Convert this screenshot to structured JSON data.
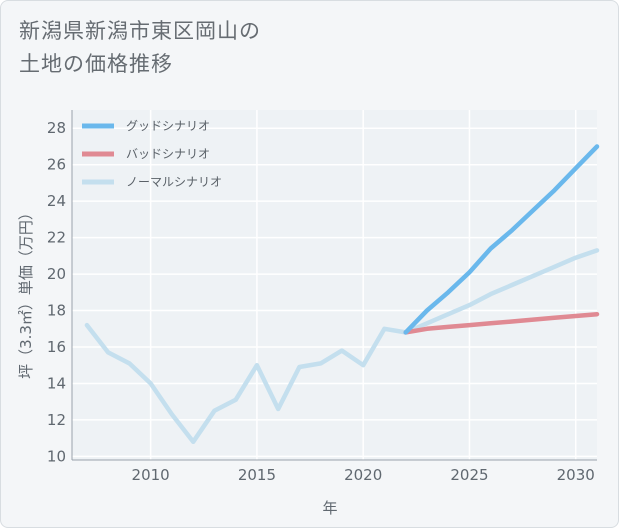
{
  "title": {
    "line1": "新潟県新潟市東区岡山の",
    "line2": "土地の価格推移"
  },
  "colors": {
    "good": "#6ab8ec",
    "bad": "#e08a93",
    "normal": "#c4dfee",
    "grid": "#ffffff",
    "axis": "#9aa3ab"
  },
  "chart_data": {
    "type": "line",
    "xlabel": "年",
    "ylabel": "坪（3.3㎡）単価（万円）",
    "xlim": [
      2006.3,
      2031
    ],
    "ylim": [
      9.8,
      29
    ],
    "xticks": [
      2010,
      2015,
      2020,
      2025,
      2030
    ],
    "yticks": [
      10,
      12,
      14,
      16,
      18,
      20,
      22,
      24,
      26,
      28
    ],
    "grid": true,
    "legend_position": "top-left",
    "series": [
      {
        "name": "グッドシナリオ",
        "key": "good",
        "x": [
          2022,
          2023,
          2024,
          2025,
          2026,
          2027,
          2028,
          2029,
          2030,
          2031
        ],
        "y": [
          16.8,
          18.0,
          19.0,
          20.1,
          21.4,
          22.4,
          23.5,
          24.6,
          25.8,
          27.0
        ]
      },
      {
        "name": "バッドシナリオ",
        "key": "bad",
        "x": [
          2022,
          2023,
          2024,
          2025,
          2026,
          2027,
          2028,
          2029,
          2030,
          2031
        ],
        "y": [
          16.8,
          17.0,
          17.1,
          17.2,
          17.3,
          17.4,
          17.5,
          17.6,
          17.7,
          17.8
        ]
      },
      {
        "name": "ノーマルシナリオ",
        "key": "normal",
        "x": [
          2007,
          2008,
          2009,
          2010,
          2011,
          2012,
          2013,
          2014,
          2015,
          2016,
          2017,
          2018,
          2019,
          2020,
          2021,
          2022,
          2023,
          2024,
          2025,
          2026,
          2027,
          2028,
          2029,
          2030,
          2031
        ],
        "y": [
          17.2,
          15.7,
          15.1,
          14.0,
          12.3,
          10.8,
          12.5,
          13.1,
          15.0,
          12.6,
          14.9,
          15.1,
          15.8,
          15.0,
          17.0,
          16.8,
          17.3,
          17.8,
          18.3,
          18.9,
          19.4,
          19.9,
          20.4,
          20.9,
          21.3
        ]
      }
    ]
  }
}
